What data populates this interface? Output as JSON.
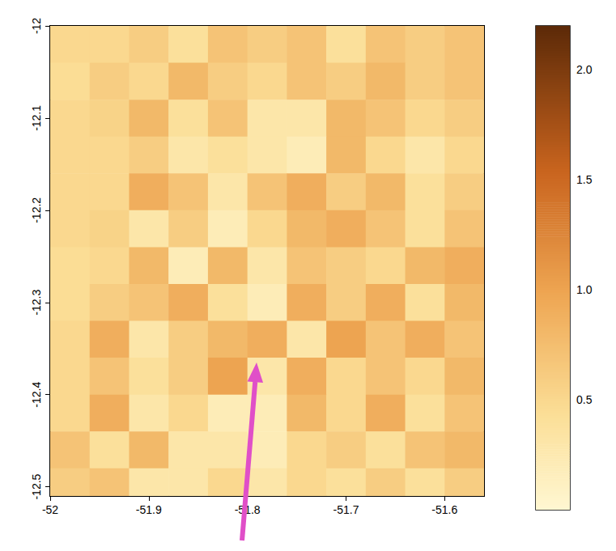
{
  "chart_data": {
    "type": "heatmap",
    "x": [
      -51.98,
      -51.94,
      -51.9,
      -51.86,
      -51.82,
      -51.78,
      -51.74,
      -51.7,
      -51.66,
      -51.62,
      -51.58
    ],
    "y": [
      -12.02,
      -12.06,
      -12.1,
      -12.14,
      -12.18,
      -12.22,
      -12.26,
      -12.3,
      -12.34,
      -12.38,
      -12.42,
      -12.46,
      -12.5
    ],
    "values": [
      [
        0.5,
        0.5,
        0.6,
        0.4,
        0.7,
        0.6,
        0.7,
        0.4,
        0.7,
        0.6,
        0.7
      ],
      [
        0.45,
        0.6,
        0.5,
        0.8,
        0.6,
        0.5,
        0.7,
        0.6,
        0.8,
        0.6,
        0.7
      ],
      [
        0.5,
        0.55,
        0.8,
        0.4,
        0.7,
        0.3,
        0.3,
        0.8,
        0.7,
        0.5,
        0.6
      ],
      [
        0.5,
        0.5,
        0.6,
        0.3,
        0.4,
        0.3,
        0.2,
        0.8,
        0.5,
        0.3,
        0.5
      ],
      [
        0.5,
        0.5,
        0.9,
        0.7,
        0.3,
        0.7,
        0.9,
        0.6,
        0.8,
        0.4,
        0.6
      ],
      [
        0.5,
        0.55,
        0.3,
        0.6,
        0.2,
        0.5,
        0.8,
        0.9,
        0.7,
        0.4,
        0.7
      ],
      [
        0.45,
        0.5,
        0.8,
        0.2,
        0.8,
        0.3,
        0.7,
        0.6,
        0.5,
        0.8,
        0.9
      ],
      [
        0.45,
        0.6,
        0.7,
        0.9,
        0.4,
        0.2,
        0.9,
        0.6,
        0.9,
        0.4,
        0.8
      ],
      [
        0.5,
        0.9,
        0.3,
        0.6,
        0.8,
        0.9,
        0.3,
        1.0,
        0.7,
        0.9,
        0.7
      ],
      [
        0.5,
        0.7,
        0.4,
        0.6,
        1.0,
        0.3,
        0.9,
        0.5,
        0.7,
        0.5,
        0.8
      ],
      [
        0.5,
        0.9,
        0.3,
        0.5,
        0.2,
        0.2,
        0.8,
        0.5,
        0.9,
        0.4,
        0.7
      ],
      [
        0.7,
        0.4,
        0.8,
        0.3,
        0.3,
        0.2,
        0.5,
        0.6,
        0.4,
        0.7,
        0.8
      ],
      [
        0.6,
        0.7,
        0.3,
        0.3,
        0.5,
        0.3,
        0.5,
        0.4,
        0.6,
        0.4,
        0.6
      ]
    ],
    "xlim": [
      -52,
      -51.56
    ],
    "ylim": [
      -12.51,
      -12
    ],
    "xticks": [
      -52,
      -51.9,
      -51.8,
      -51.7,
      -51.6
    ],
    "yticks": [
      -12,
      -12.1,
      -12.2,
      -12.3,
      -12.4,
      -12.5
    ],
    "colorbar_lim": [
      0,
      2.2
    ],
    "colorbar_ticks": [
      0.5,
      {
        "value": 1,
        "label": "1.0"
      },
      1.5,
      {
        "value": 2,
        "label": "2.0"
      }
    ]
  }
}
